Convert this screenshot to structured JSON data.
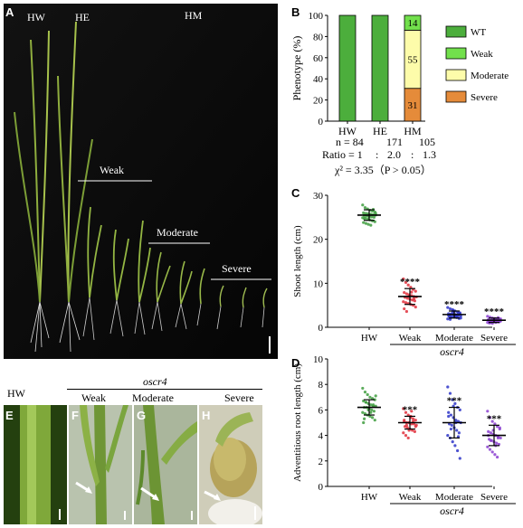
{
  "panel_A": {
    "letter": "A",
    "labels": {
      "hw": "HW",
      "he": "HE",
      "hm": "HM",
      "weak": "Weak",
      "moderate": "Moderate",
      "severe": "Severe"
    }
  },
  "panel_B": {
    "letter": "B",
    "ylabel": "Phenotype (%)",
    "yticks": [
      "0",
      "20",
      "40",
      "60",
      "80",
      "100"
    ],
    "stats": {
      "n_prefix": "n = 84",
      "n_he": "171",
      "n_hm": "105",
      "ratio_prefix": "Ratio = 1",
      "ratio_colon1": ":",
      "ratio_he": "2.0",
      "ratio_colon2": ":",
      "ratio_hm": "1.3",
      "chi": "χ² = 3.35（P > 0.05）"
    },
    "legend": [
      "WT",
      "Weak",
      "Moderate",
      "Severe"
    ],
    "segment_labels": [
      "14",
      "55",
      "31"
    ]
  },
  "panel_C": {
    "letter": "C",
    "ylabel": "Shoot length (cm)",
    "yticks": [
      "0",
      "10",
      "20",
      "30"
    ],
    "sig": "****"
  },
  "panel_D": {
    "letter": "D",
    "ylabel": "Adventitious root length (cm)",
    "yticks": [
      "0",
      "2",
      "4",
      "6",
      "8",
      "10"
    ],
    "sig": "***"
  },
  "shared": {
    "group": "oscr4",
    "categories": [
      "HW",
      "Weak",
      "Moderate",
      "Severe"
    ]
  },
  "panels_EH": {
    "E": {
      "letter": "E",
      "label": "HW"
    },
    "F": {
      "letter": "F",
      "label": "Weak"
    },
    "G": {
      "letter": "G",
      "label": "Moderate"
    },
    "H": {
      "letter": "H",
      "label": "Severe"
    },
    "group": "oscr4"
  },
  "colors": {
    "wt": "#4cae3c",
    "weak": "#72e04c",
    "moderate": "#fdfcaa",
    "severe": "#e58b3a",
    "hw_pts": "#3f9e3f",
    "weak_pts": "#e0303c",
    "mod_pts": "#2e35c8",
    "sev_pts": "#8b3fd0"
  },
  "chart_data": [
    {
      "type": "bar",
      "title": "",
      "ylabel": "Phenotype (%)",
      "ylim": [
        0,
        100
      ],
      "categories": [
        "HW",
        "HE",
        "HM"
      ],
      "series": [
        {
          "name": "WT",
          "values": [
            100,
            100,
            0
          ]
        },
        {
          "name": "Weak",
          "values": [
            0,
            0,
            14
          ]
        },
        {
          "name": "Moderate",
          "values": [
            0,
            0,
            55
          ]
        },
        {
          "name": "Severe",
          "values": [
            0,
            0,
            31
          ]
        }
      ],
      "stacked": true,
      "legend": "right"
    },
    {
      "type": "scatter",
      "ylabel": "Shoot length (cm)",
      "ylim": [
        0,
        30
      ],
      "categories": [
        "HW",
        "Weak",
        "Moderate",
        "Severe"
      ],
      "means": [
        25.5,
        7.0,
        2.9,
        1.6
      ],
      "sd": [
        1.2,
        1.8,
        0.8,
        0.5
      ],
      "annotations": [
        "",
        "****",
        "****",
        "****"
      ],
      "points": [
        [
          27.8,
          27.2,
          26.9,
          26.6,
          26.4,
          26.2,
          26.0,
          25.9,
          25.8,
          25.7,
          25.6,
          25.5,
          25.4,
          25.3,
          25.2,
          25.1,
          25.0,
          24.9,
          24.8,
          24.6,
          24.4,
          24.2,
          24.0,
          23.8,
          23.6,
          23.4,
          23.2,
          26.8,
          25.9,
          24.7
        ],
        [
          11.0,
          10.2,
          9.6,
          9.1,
          8.6,
          8.2,
          7.9,
          7.6,
          7.4,
          7.2,
          7.0,
          6.9,
          6.8,
          6.6,
          6.4,
          6.2,
          6.0,
          5.8,
          5.6,
          5.4,
          5.2,
          5.0,
          4.6,
          4.2,
          3.6,
          7.1,
          8.0,
          6.5
        ],
        [
          4.5,
          4.2,
          4.0,
          3.7,
          3.5,
          3.3,
          3.1,
          3.0,
          2.9,
          2.8,
          2.7,
          2.6,
          2.5,
          2.4,
          2.3,
          2.2,
          2.0,
          1.9,
          1.8,
          3.4,
          2.9,
          2.6,
          3.1,
          2.7,
          2.2,
          3.8,
          2.5,
          3.2,
          2.1,
          2.8
        ],
        [
          2.5,
          2.3,
          2.1,
          2.0,
          1.9,
          1.8,
          1.7,
          1.6,
          1.6,
          1.5,
          1.5,
          1.4,
          1.4,
          1.3,
          1.3,
          1.2,
          1.2,
          1.1,
          1.0,
          0.9,
          1.8,
          1.6,
          1.4,
          1.7,
          1.3,
          1.5,
          1.1,
          2.2,
          1.9,
          1.0
        ]
      ]
    },
    {
      "type": "scatter",
      "ylabel": "Adventitious root length (cm)",
      "ylim": [
        0,
        10
      ],
      "categories": [
        "HW",
        "Weak",
        "Moderate",
        "Severe"
      ],
      "means": [
        6.2,
        5.0,
        5.0,
        4.0
      ],
      "sd": [
        0.6,
        0.5,
        1.2,
        0.8
      ],
      "annotations": [
        "",
        "***",
        "***",
        "***"
      ],
      "points": [
        [
          7.7,
          7.4,
          7.2,
          7.0,
          6.9,
          6.8,
          6.7,
          6.6,
          6.5,
          6.4,
          6.3,
          6.3,
          6.2,
          6.2,
          6.1,
          6.0,
          5.9,
          5.8,
          5.7,
          5.6,
          5.5,
          5.4,
          5.2,
          5.0,
          6.6,
          6.0,
          5.8,
          6.4,
          7.1,
          5.3
        ],
        [
          6.1,
          5.8,
          5.6,
          5.4,
          5.3,
          5.2,
          5.1,
          5.0,
          5.0,
          4.9,
          4.9,
          4.8,
          4.7,
          4.6,
          4.5,
          4.4,
          4.3,
          4.2,
          4.0,
          3.8,
          5.5,
          5.1,
          4.7,
          5.2,
          4.8,
          4.4,
          5.9
        ],
        [
          7.8,
          7.3,
          6.8,
          6.5,
          6.2,
          6.0,
          5.8,
          5.6,
          5.4,
          5.2,
          5.1,
          5.0,
          4.9,
          4.8,
          4.6,
          4.4,
          4.2,
          4.0,
          3.8,
          3.5,
          3.2,
          2.8,
          2.2,
          5.5,
          4.5,
          6.3,
          5.0,
          3.9
        ],
        [
          5.9,
          5.4,
          5.1,
          4.9,
          4.7,
          4.5,
          4.3,
          4.2,
          4.1,
          4.0,
          3.9,
          3.8,
          3.7,
          3.6,
          3.5,
          3.4,
          3.3,
          3.1,
          2.9,
          2.7,
          2.5,
          2.3,
          4.6,
          4.0,
          3.6,
          4.4,
          3.2,
          3.8
        ]
      ]
    }
  ]
}
